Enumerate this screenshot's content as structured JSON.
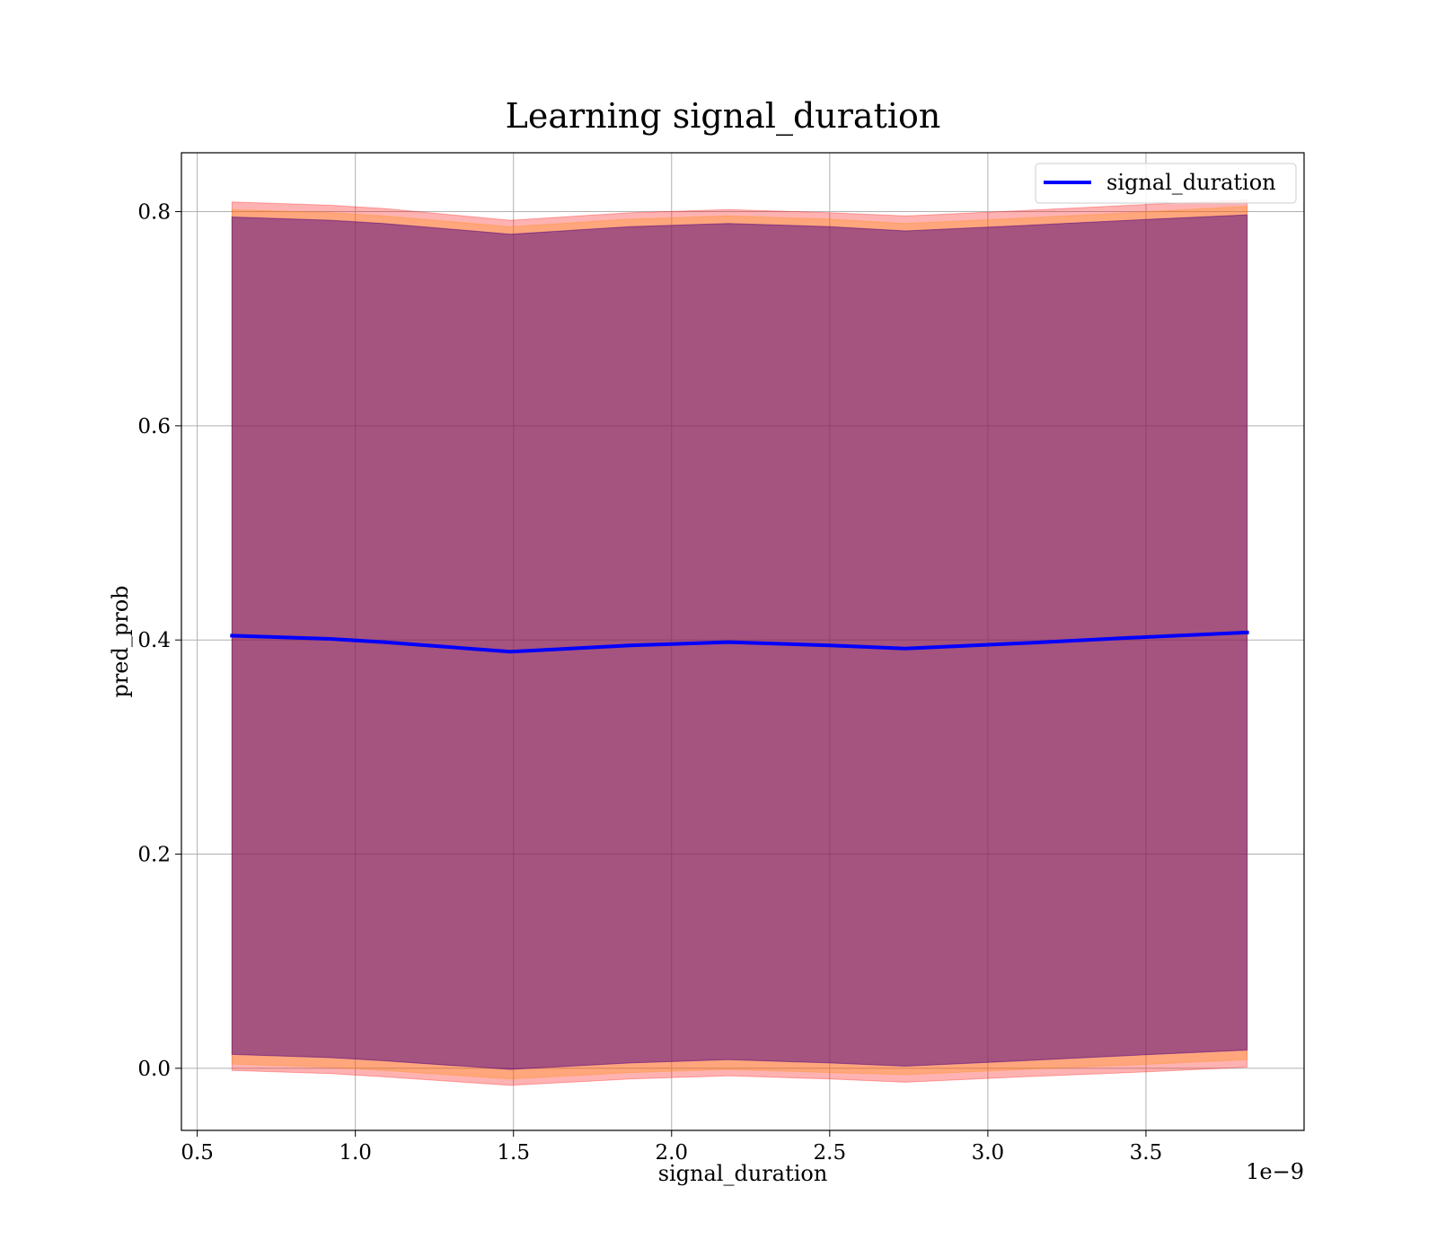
{
  "chart_data": {
    "type": "area",
    "title": "Learning signal_duration",
    "xlabel": "signal_duration",
    "ylabel": "pred_prob",
    "x_offset_text": "1e−9",
    "xlim": [
      0.45,
      4.0
    ],
    "ylim": [
      -0.058,
      0.855
    ],
    "grid": true,
    "legend_placement": "top-right",
    "x_ticks": [
      0.5,
      1.0,
      1.5,
      2.0,
      2.5,
      3.0,
      3.5
    ],
    "x_tick_labels": [
      "0.5",
      "1.0",
      "1.5",
      "2.0",
      "2.5",
      "3.0",
      "3.5"
    ],
    "y_ticks": [
      0.0,
      0.2,
      0.4,
      0.6,
      0.8
    ],
    "y_tick_labels": [
      "0.0",
      "0.2",
      "0.4",
      "0.6",
      "0.8"
    ],
    "x": [
      0.61,
      0.92,
      1.09,
      1.49,
      1.87,
      2.18,
      2.5,
      2.74,
      3.11,
      3.45,
      3.82
    ],
    "series": [
      {
        "name": "signal_duration",
        "type": "line",
        "color": "#0000ff",
        "values": [
          0.404,
          0.401,
          0.398,
          0.389,
          0.395,
          0.398,
          0.395,
          0.392,
          0.397,
          0.402,
          0.407
        ]
      }
    ],
    "bands": [
      {
        "color": "#ff0000",
        "opacity": 0.3,
        "lower": [
          -0.002,
          -0.005,
          -0.008,
          -0.016,
          -0.01,
          -0.007,
          -0.01,
          -0.013,
          -0.008,
          -0.004,
          0.001
        ],
        "upper": [
          0.809,
          0.806,
          0.803,
          0.792,
          0.799,
          0.802,
          0.799,
          0.796,
          0.801,
          0.806,
          0.811
        ]
      },
      {
        "color": "#ff8c00",
        "opacity": 0.3,
        "lower": [
          0.004,
          0.001,
          -0.002,
          -0.01,
          -0.004,
          -0.001,
          -0.004,
          -0.006,
          -0.001,
          0.003,
          0.008
        ],
        "upper": [
          0.802,
          0.799,
          0.796,
          0.786,
          0.793,
          0.796,
          0.793,
          0.789,
          0.794,
          0.799,
          0.805
        ]
      },
      {
        "color": "#4b0082",
        "opacity": 0.5,
        "lower": [
          0.013,
          0.01,
          0.007,
          -0.001,
          0.005,
          0.008,
          0.005,
          0.002,
          0.007,
          0.012,
          0.017
        ],
        "upper": [
          0.795,
          0.792,
          0.789,
          0.779,
          0.786,
          0.789,
          0.786,
          0.782,
          0.787,
          0.792,
          0.797
        ]
      }
    ]
  }
}
